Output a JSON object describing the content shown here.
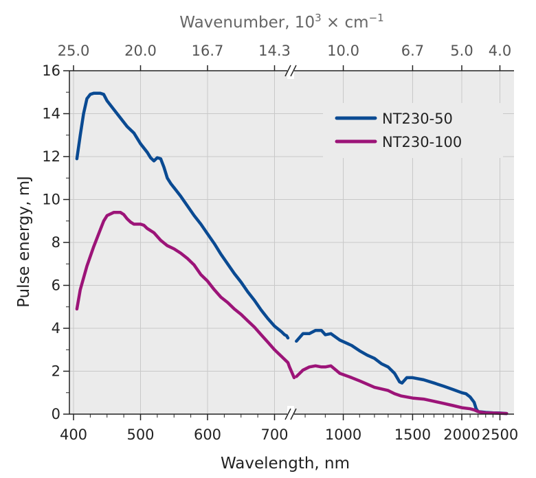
{
  "chart_data": {
    "type": "line",
    "xlabel": "Wavelength, nm",
    "ylabel": "Pulse energy, mJ",
    "x2label_prefix": "Wavenumber, 10",
    "x2label_exp": "3",
    "x2label_unit": " × cm",
    "x2label_unit_exp": "−1",
    "ylim": [
      0,
      16
    ],
    "y_ticks": [
      0,
      2,
      4,
      6,
      8,
      10,
      12,
      14,
      16
    ],
    "y_tick_labels": [
      "0",
      "2",
      "4",
      "6",
      "8",
      "10",
      "12",
      "14",
      "16"
    ],
    "x_segments": [
      {
        "range": [
          400,
          720
        ],
        "ticks": [
          400,
          500,
          600,
          700
        ],
        "tick_labels": [
          "400",
          "500",
          "600",
          "700"
        ]
      },
      {
        "range": [
          750,
          2650
        ],
        "ticks": [
          1000,
          1500,
          2000,
          2500
        ],
        "tick_labels": [
          "1000",
          "1500",
          "2000",
          "2500"
        ]
      }
    ],
    "x2_ticks_nm": [
      400,
      500,
      600,
      700,
      1000,
      1500,
      2000,
      2500
    ],
    "x2_tick_labels": [
      "25.0",
      "20.0",
      "16.7",
      "14.3",
      "10.0",
      "6.7",
      "5.0",
      "4.0"
    ],
    "grid": true,
    "background": "#ebebeb",
    "legend_position": "top-right",
    "series": [
      {
        "name": "NT230-50",
        "color": "#0a4a92",
        "segments": [
          [
            [
              405,
              11.9
            ],
            [
              410,
              13.0
            ],
            [
              415,
              14.0
            ],
            [
              420,
              14.7
            ],
            [
              425,
              14.9
            ],
            [
              430,
              14.95
            ],
            [
              440,
              14.95
            ],
            [
              445,
              14.9
            ],
            [
              450,
              14.6
            ],
            [
              460,
              14.2
            ],
            [
              470,
              13.8
            ],
            [
              480,
              13.4
            ],
            [
              490,
              13.1
            ],
            [
              500,
              12.6
            ],
            [
              510,
              12.2
            ],
            [
              515,
              11.95
            ],
            [
              520,
              11.8
            ],
            [
              525,
              11.95
            ],
            [
              530,
              11.9
            ],
            [
              535,
              11.5
            ],
            [
              540,
              11.0
            ],
            [
              545,
              10.75
            ],
            [
              550,
              10.55
            ],
            [
              560,
              10.15
            ],
            [
              570,
              9.7
            ],
            [
              580,
              9.25
            ],
            [
              590,
              8.85
            ],
            [
              600,
              8.4
            ],
            [
              610,
              7.95
            ],
            [
              620,
              7.45
            ],
            [
              630,
              7.0
            ],
            [
              640,
              6.55
            ],
            [
              650,
              6.15
            ],
            [
              660,
              5.7
            ],
            [
              670,
              5.3
            ],
            [
              680,
              4.85
            ],
            [
              690,
              4.45
            ],
            [
              700,
              4.1
            ],
            [
              710,
              3.85
            ],
            [
              715,
              3.7
            ],
            [
              718,
              3.65
            ],
            [
              720,
              3.55
            ]
          ],
          [
            [
              760,
              3.4
            ],
            [
              790,
              3.75
            ],
            [
              820,
              3.75
            ],
            [
              850,
              3.9
            ],
            [
              880,
              3.9
            ],
            [
              900,
              3.7
            ],
            [
              930,
              3.75
            ],
            [
              980,
              3.45
            ],
            [
              1050,
              3.2
            ],
            [
              1100,
              2.95
            ],
            [
              1150,
              2.75
            ],
            [
              1200,
              2.6
            ],
            [
              1250,
              2.35
            ],
            [
              1300,
              2.2
            ],
            [
              1350,
              1.9
            ],
            [
              1390,
              1.5
            ],
            [
              1410,
              1.45
            ],
            [
              1450,
              1.7
            ],
            [
              1500,
              1.7
            ],
            [
              1600,
              1.6
            ],
            [
              1700,
              1.45
            ],
            [
              1800,
              1.3
            ],
            [
              1900,
              1.15
            ],
            [
              2000,
              1.0
            ],
            [
              2050,
              0.95
            ],
            [
              2100,
              0.8
            ],
            [
              2150,
              0.55
            ],
            [
              2175,
              0.25
            ],
            [
              2200,
              0.12
            ],
            [
              2250,
              0.1
            ],
            [
              2300,
              0.08
            ],
            [
              2400,
              0.06
            ],
            [
              2500,
              0.05
            ],
            [
              2600,
              0.03
            ]
          ]
        ]
      },
      {
        "name": "NT230-100",
        "color": "#9c1478",
        "segments": [
          [
            [
              405,
              4.9
            ],
            [
              410,
              5.8
            ],
            [
              420,
              6.9
            ],
            [
              430,
              7.8
            ],
            [
              440,
              8.6
            ],
            [
              445,
              9.0
            ],
            [
              450,
              9.25
            ],
            [
              460,
              9.4
            ],
            [
              470,
              9.4
            ],
            [
              475,
              9.3
            ],
            [
              480,
              9.1
            ],
            [
              485,
              8.95
            ],
            [
              490,
              8.85
            ],
            [
              500,
              8.85
            ],
            [
              505,
              8.8
            ],
            [
              510,
              8.65
            ],
            [
              520,
              8.45
            ],
            [
              530,
              8.1
            ],
            [
              540,
              7.85
            ],
            [
              550,
              7.7
            ],
            [
              560,
              7.5
            ],
            [
              570,
              7.25
            ],
            [
              580,
              6.95
            ],
            [
              590,
              6.5
            ],
            [
              600,
              6.2
            ],
            [
              610,
              5.8
            ],
            [
              620,
              5.45
            ],
            [
              630,
              5.2
            ],
            [
              640,
              4.9
            ],
            [
              650,
              4.65
            ],
            [
              660,
              4.35
            ],
            [
              670,
              4.05
            ],
            [
              680,
              3.7
            ],
            [
              690,
              3.35
            ],
            [
              700,
              3.0
            ],
            [
              710,
              2.7
            ],
            [
              720,
              2.4
            ],
            [
              730,
              2.2
            ],
            [
              740,
              1.95
            ],
            [
              750,
              1.7
            ]
          ],
          [
            [
              760,
              1.75
            ],
            [
              790,
              2.05
            ],
            [
              820,
              2.2
            ],
            [
              850,
              2.25
            ],
            [
              880,
              2.2
            ],
            [
              900,
              2.2
            ],
            [
              930,
              2.25
            ],
            [
              980,
              1.9
            ],
            [
              1050,
              1.7
            ],
            [
              1100,
              1.55
            ],
            [
              1150,
              1.4
            ],
            [
              1200,
              1.25
            ],
            [
              1300,
              1.1
            ],
            [
              1350,
              0.95
            ],
            [
              1400,
              0.85
            ],
            [
              1500,
              0.75
            ],
            [
              1600,
              0.7
            ],
            [
              1700,
              0.6
            ],
            [
              1800,
              0.5
            ],
            [
              1900,
              0.4
            ],
            [
              2000,
              0.3
            ],
            [
              2100,
              0.25
            ],
            [
              2150,
              0.2
            ],
            [
              2200,
              0.12
            ],
            [
              2250,
              0.08
            ],
            [
              2300,
              0.06
            ],
            [
              2400,
              0.05
            ],
            [
              2500,
              0.04
            ],
            [
              2600,
              0.03
            ]
          ]
        ]
      }
    ]
  }
}
